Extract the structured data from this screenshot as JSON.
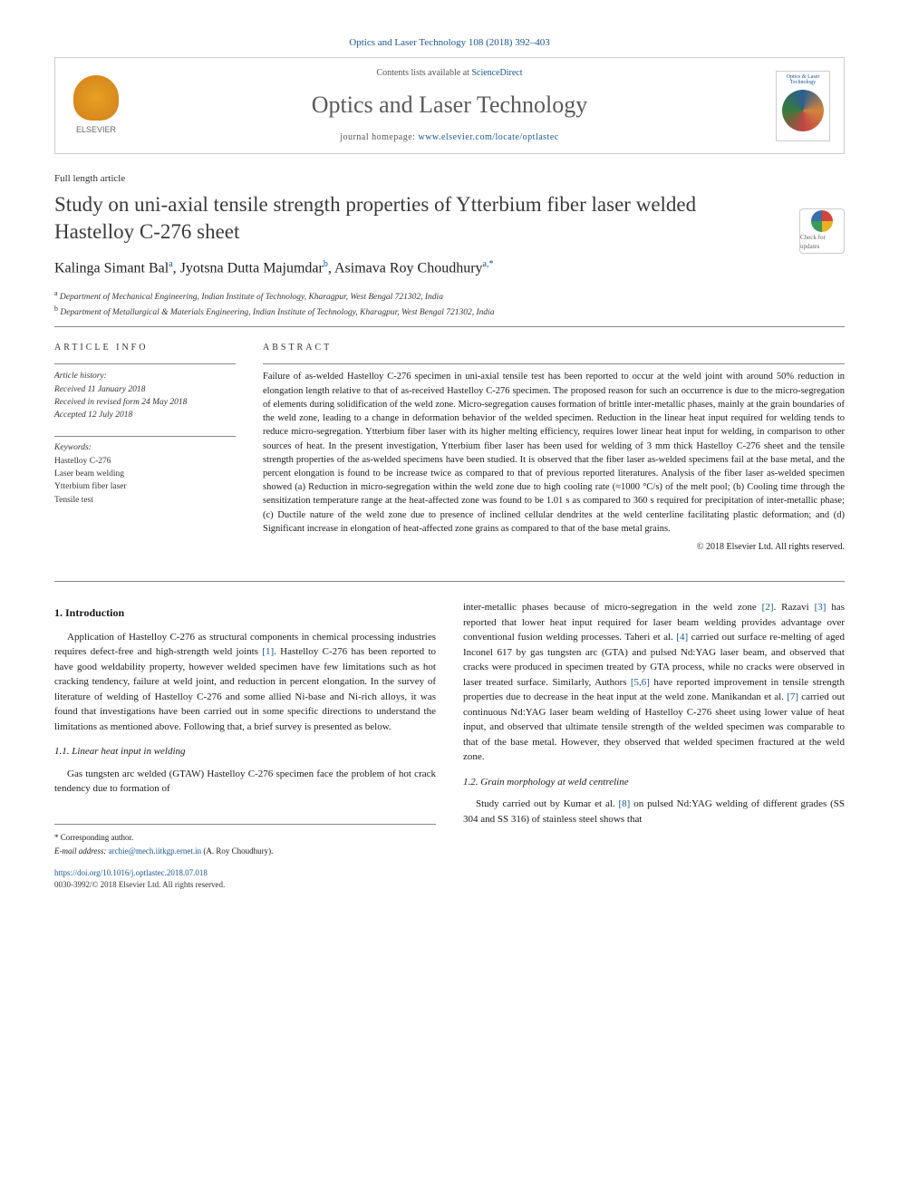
{
  "journal_ref": "Optics and Laser Technology 108 (2018) 392–403",
  "header": {
    "contents_prefix": "Contents lists available at ",
    "contents_link": "ScienceDirect",
    "journal_title": "Optics and Laser Technology",
    "homepage_prefix": "journal homepage: ",
    "homepage_url": "www.elsevier.com/locate/optlastec",
    "publisher_label": "ELSEVIER",
    "cover_label": "Optics & Laser Technology"
  },
  "article": {
    "type": "Full length article",
    "title": "Study on uni-axial tensile strength properties of Ytterbium fiber laser welded Hastelloy C-276 sheet",
    "check_updates": "Check for updates",
    "authors_html": "Kalinga Simant Bal",
    "author1": "Kalinga Simant Bal",
    "author1_sup": "a",
    "author2": "Jyotsna Dutta Majumdar",
    "author2_sup": "b",
    "author3": "Asimava Roy Choudhury",
    "author3_sup": "a,",
    "author3_star": "*",
    "affiliations": {
      "a_sup": "a",
      "a": "Department of Mechanical Engineering, Indian Institute of Technology, Kharagpur, West Bengal 721302, India",
      "b_sup": "b",
      "b": "Department of Metallurgical & Materials Engineering, Indian Institute of Technology, Kharagpur, West Bengal 721302, India"
    }
  },
  "info": {
    "heading": "ARTICLE INFO",
    "history_label": "Article history:",
    "received": "Received 11 January 2018",
    "revised": "Received in revised form 24 May 2018",
    "accepted": "Accepted 12 July 2018",
    "keywords_label": "Keywords:",
    "keywords": [
      "Hastelloy C-276",
      "Laser beam welding",
      "Ytterbium fiber laser",
      "Tensile test"
    ]
  },
  "abstract": {
    "heading": "ABSTRACT",
    "text": "Failure of as-welded Hastelloy C-276 specimen in uni-axial tensile test has been reported to occur at the weld joint with around 50% reduction in elongation length relative to that of as-received Hastelloy C-276 specimen. The proposed reason for such an occurrence is due to the micro-segregation of elements during solidification of the weld zone. Micro-segregation causes formation of brittle inter-metallic phases, mainly at the grain boundaries of the weld zone, leading to a change in deformation behavior of the welded specimen. Reduction in the linear heat input required for welding tends to reduce micro-segregation. Ytterbium fiber laser with its higher melting efficiency, requires lower linear heat input for welding, in comparison to other sources of heat. In the present investigation, Ytterbium fiber laser has been used for welding of 3 mm thick Hastelloy C-276 sheet and the tensile strength properties of the as-welded specimens have been studied. It is observed that the fiber laser as-welded specimens fail at the base metal, and the percent elongation is found to be increase twice as compared to that of previous reported literatures. Analysis of the fiber laser as-welded specimen showed (a) Reduction in micro-segregation within the weld zone due to high cooling rate (≈1000 °C/s) of the melt pool; (b) Cooling time through the sensitization temperature range at the heat-affected zone was found to be 1.01 s as compared to 360 s required for precipitation of inter-metallic phase; (c) Ductile nature of the weld zone due to presence of inclined cellular dendrites at the weld centerline facilitating plastic deformation; and (d) Significant increase in elongation of heat-affected zone grains as compared to that of the base metal grains.",
    "copyright": "© 2018 Elsevier Ltd. All rights reserved."
  },
  "body": {
    "sec1_heading": "1. Introduction",
    "sec1_p1a": "Application of Hastelloy C-276 as structural components in chemical processing industries requires defect-free and high-strength weld joints ",
    "sec1_ref1": "[1]",
    "sec1_p1b": ". Hastelloy C-276 has been reported to have good weldability property, however welded specimen have few limitations such as hot cracking tendency, failure at weld joint, and reduction in percent elongation. In the survey of literature of welding of Hastelloy C-276 and some allied Ni-base and Ni-rich alloys, it was found that investigations have been carried out in some specific directions to understand the limitations as mentioned above. Following that, a brief survey is presented as below.",
    "sec11_heading": "1.1. Linear heat input in welding",
    "sec11_p1": "Gas tungsten arc welded (GTAW) Hastelloy C-276 specimen face the problem of hot crack tendency due to formation of",
    "col2_p1a": "inter-metallic phases because of micro-segregation in the weld zone ",
    "col2_ref2": "[2]",
    "col2_p1b": ". Razavi ",
    "col2_ref3": "[3]",
    "col2_p1c": " has reported that lower heat input required for laser beam welding provides advantage over conventional fusion welding processes. Taheri et al. ",
    "col2_ref4": "[4]",
    "col2_p1d": " carried out surface re-melting of aged Inconel 617 by gas tungsten arc (GTA) and pulsed Nd:YAG laser beam, and observed that cracks were produced in specimen treated by GTA process, while no cracks were observed in laser treated surface. Similarly, Authors ",
    "col2_ref56": "[5,6]",
    "col2_p1e": " have reported improvement in tensile strength properties due to decrease in the heat input at the weld zone. Manikandan et al. ",
    "col2_ref7": "[7]",
    "col2_p1f": " carried out continuous Nd:YAG laser beam welding of Hastelloy C-276 sheet using lower value of heat input, and observed that ultimate tensile strength of the welded specimen was comparable to that of the base metal. However, they observed that welded specimen fractured at the weld zone.",
    "sec12_heading": "1.2. Grain morphology at weld centreline",
    "sec12_p1a": "Study carried out by Kumar et al. ",
    "sec12_ref8": "[8]",
    "sec12_p1b": " on pulsed Nd:YAG welding of different grades (SS 304 and SS 316) of stainless steel shows that"
  },
  "footer": {
    "corresponding_label": "* Corresponding author.",
    "email_label": "E-mail address: ",
    "email": "archie@mech.iitkgp.ernet.in",
    "email_name": " (A. Roy Choudhury).",
    "doi": "https://doi.org/10.1016/j.optlastec.2018.07.018",
    "issn_line": "0030-3992/© 2018 Elsevier Ltd. All rights reserved."
  },
  "colors": {
    "link": "#1a5490",
    "text": "#1a1a1a",
    "heading_gray": "#3a3a3a",
    "border": "#888888"
  }
}
